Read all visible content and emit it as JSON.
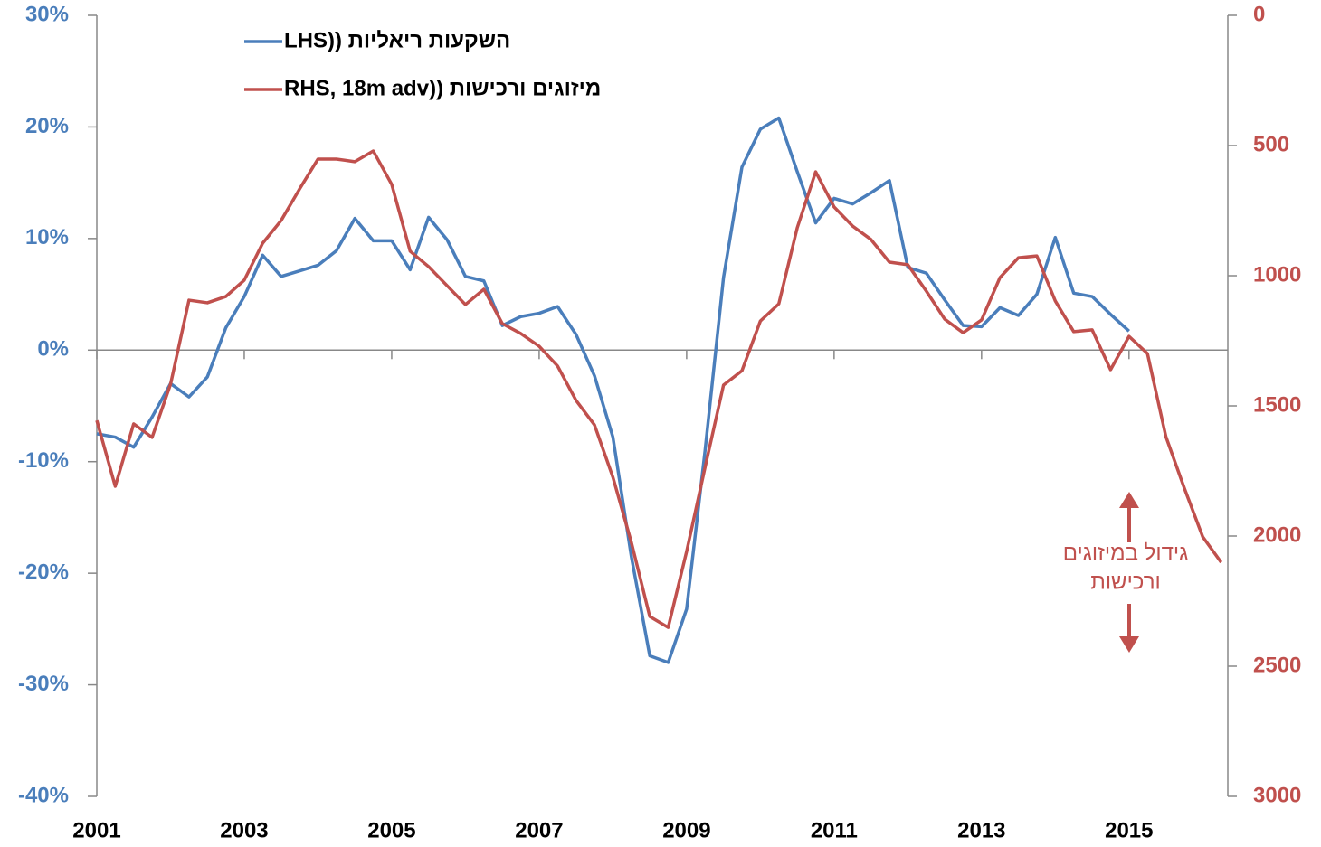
{
  "chart_data": {
    "type": "line",
    "x": [
      2001,
      2001.25,
      2001.5,
      2001.75,
      2002,
      2002.25,
      2002.5,
      2002.75,
      2003,
      2003.25,
      2003.5,
      2003.75,
      2004,
      2004.25,
      2004.5,
      2004.75,
      2005,
      2005.25,
      2005.5,
      2005.75,
      2006,
      2006.25,
      2006.5,
      2006.75,
      2007,
      2007.25,
      2007.5,
      2007.75,
      2008,
      2008.25,
      2008.5,
      2008.75,
      2009,
      2009.25,
      2009.5,
      2009.75,
      2010,
      2010.25,
      2010.5,
      2010.75,
      2011,
      2011.25,
      2011.5,
      2011.75,
      2012,
      2012.25,
      2012.5,
      2012.75,
      2013,
      2013.25,
      2013.5,
      2013.75,
      2014,
      2014.25,
      2014.5,
      2014.75,
      2015,
      2015.25,
      2015.5,
      2015.75,
      2016,
      2016.25
    ],
    "series": [
      {
        "name": "השקעות ריאליות ((LHS",
        "color": "#4a7ebb",
        "axis": "y",
        "values": [
          -7.5,
          -7.8,
          -8.7,
          -6,
          -3,
          -4.2,
          -2.4,
          2,
          4.8,
          8.5,
          6.6,
          7.1,
          7.6,
          8.9,
          11.8,
          9.8,
          9.8,
          7.2,
          11.9,
          9.9,
          6.6,
          6.2,
          2.2,
          3.0,
          3.3,
          3.9,
          1.4,
          -2.3,
          -7.8,
          -18.5,
          -27.4,
          -28,
          -23.2,
          -9,
          6.5,
          16.4,
          19.8,
          20.8,
          16,
          11.4,
          13.6,
          13.1,
          14.1,
          15.2,
          7.4,
          6.9,
          4.5,
          2.2,
          2.1,
          3.8,
          3.1,
          5,
          10.1,
          5.1,
          4.8,
          3.2,
          1.7,
          null,
          null,
          null,
          null,
          null
        ]
      },
      {
        "name": "מיזוגים ורכישות ((RHS, 18m adv",
        "color": "#c0504d",
        "axis": "y2",
        "values": [
          1556,
          1809,
          1569,
          1621,
          1417,
          1094,
          1104,
          1080,
          1017,
          875,
          788,
          667,
          552,
          552,
          562,
          521,
          649,
          906,
          965,
          1038,
          1111,
          1052,
          1184,
          1222,
          1271,
          1347,
          1479,
          1573,
          1774,
          2024,
          2309,
          2351,
          2059,
          1736,
          1420,
          1365,
          1174,
          1108,
          816,
          601,
          736,
          809,
          861,
          948,
          958,
          1059,
          1167,
          1219,
          1170,
          1007,
          931,
          924,
          1097,
          1215,
          1208,
          1361,
          1233,
          1299,
          1618,
          1816,
          2003,
          2101
        ]
      }
    ],
    "xlim": [
      2001,
      2016.34
    ],
    "xticks": [
      2001,
      2003,
      2005,
      2007,
      2009,
      2011,
      2013,
      2015
    ],
    "ylim": [
      -40,
      30
    ],
    "yticks": [
      {
        "value": -40,
        "label": "-40%"
      },
      {
        "value": -30,
        "label": "-30%"
      },
      {
        "value": -20,
        "label": "-20%"
      },
      {
        "value": -10,
        "label": "-10%"
      },
      {
        "value": 0,
        "label": "0%"
      },
      {
        "value": 10,
        "label": "10%"
      },
      {
        "value": 20,
        "label": "20%"
      },
      {
        "value": 30,
        "label": "30%"
      }
    ],
    "y2lim": [
      3000,
      0
    ],
    "y2ticks": [
      0,
      500,
      1000,
      1500,
      2000,
      2500,
      3000
    ],
    "legend": "upper left",
    "annotation": [
      "גידול במיזוגים",
      "ורכישות"
    ]
  }
}
